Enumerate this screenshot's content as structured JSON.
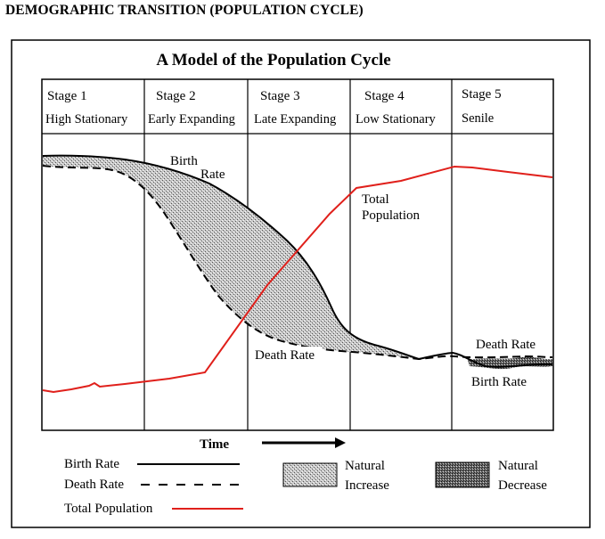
{
  "heading": "DEMOGRAPHIC TRANSITION (POPULATION CYCLE)",
  "figure_title": "A Model of the Population Cycle",
  "stages": [
    {
      "name": "Stage 1",
      "label": "High Stationary"
    },
    {
      "name": "Stage 2",
      "label": "Early Expanding"
    },
    {
      "name": "Stage 3",
      "label": "Late Expanding"
    },
    {
      "name": "Stage 4",
      "label": "Low Stationary"
    },
    {
      "name": "Stage 5",
      "label": "Senile"
    }
  ],
  "annotations": {
    "birth_rate_line1": "Birth",
    "birth_rate_line2": "Rate",
    "total_population_line1": "Total",
    "total_population_line2": "Population",
    "death_rate_stage3": "Death Rate",
    "death_rate_stage5": "Death Rate",
    "birth_rate_stage5": "Birth Rate"
  },
  "time_axis_label": "Time",
  "legend": {
    "birth_rate": "Birth Rate",
    "death_rate": "Death Rate",
    "total_population": "Total Population",
    "natural_increase_line1": "Natural",
    "natural_increase_line2": "Increase",
    "natural_decrease_line1": "Natural",
    "natural_decrease_line2": "Decrease"
  },
  "colors": {
    "total_population": "#e0201b",
    "lines": "#000000",
    "shading": "#9a9a9a",
    "background": "#ffffff"
  }
}
